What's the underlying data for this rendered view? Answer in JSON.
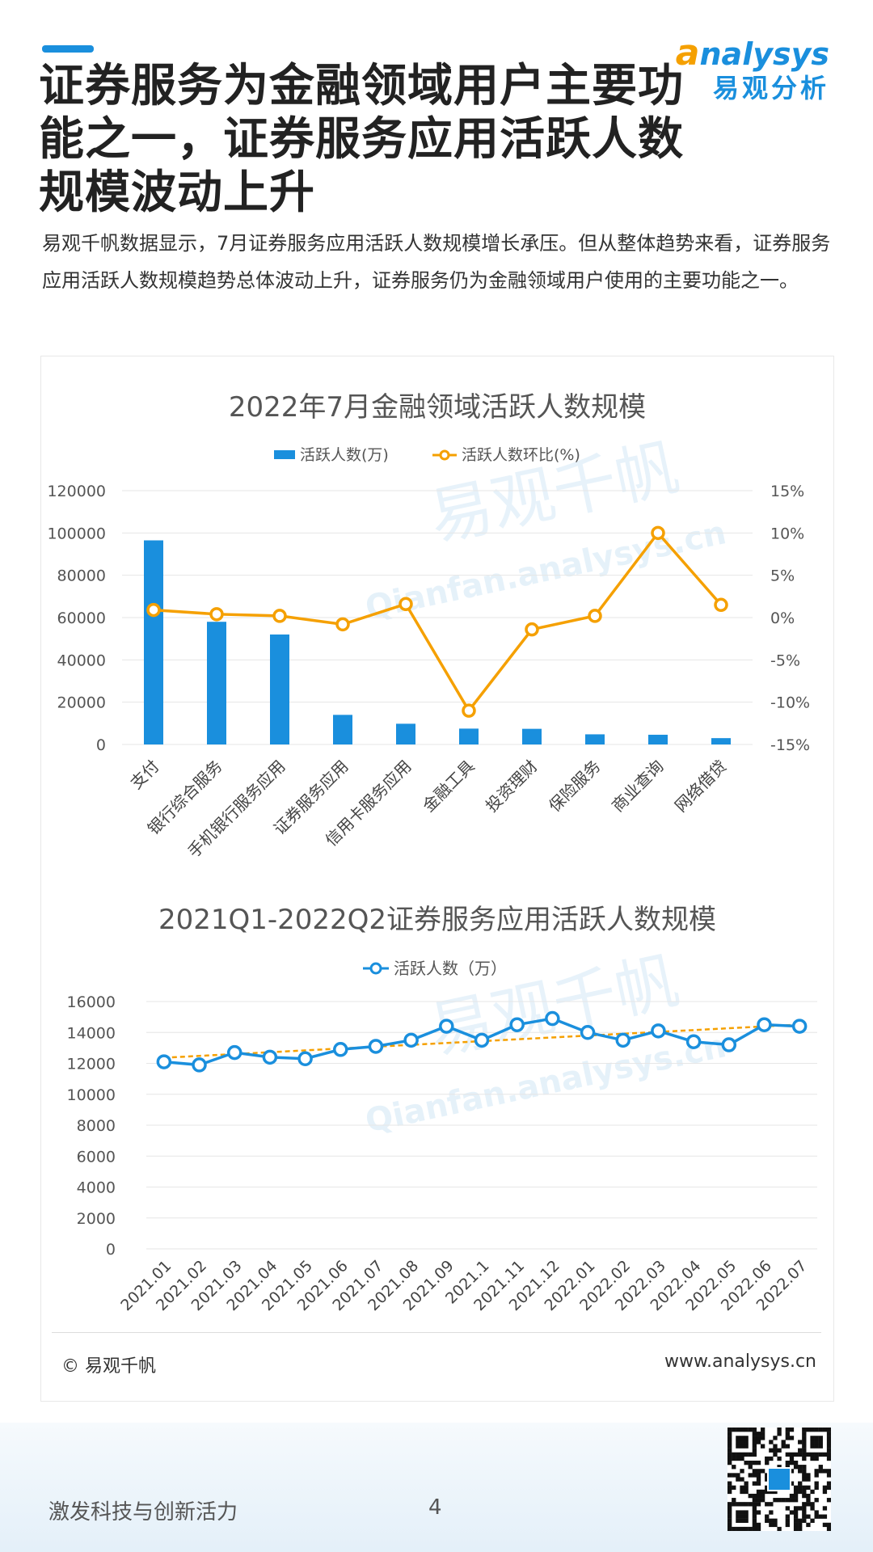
{
  "header": {
    "title": "证券服务为金融领域用户主要功\n能之一，证券服务应用活跃人数\n规模波动上升",
    "description": "易观千帆数据显示，7月证券服务应用活跃人数规模增长承压。但从整体趋势来看，证券服务应用活跃人数规模趋势总体波动上升，证券服务仍为金融领域用户使用的主要功能之一。"
  },
  "logo": {
    "en": "nalysys",
    "en_initial": "a",
    "cn": "易观分析"
  },
  "watermark": {
    "cn": "易观千帆",
    "url": "Qianfan.analysys.cn"
  },
  "footer": {
    "copyright": "© 易观千帆",
    "website": "www.analysys.cn",
    "slogan": "激发科技与创新活力",
    "page_number": "4"
  },
  "colors": {
    "accent": "#1a8fdd",
    "orange": "#f5a000",
    "grid": "#e6e6e6"
  },
  "chart_data": [
    {
      "type": "bar",
      "title": "2022年7月金融领域活跃人数规模",
      "categories": [
        "支付",
        "银行综合服务",
        "手机银行服务应用",
        "证券服务应用",
        "信用卡服务应用",
        "金融工具",
        "投资理财",
        "保险服务",
        "商业查询",
        "网络借贷"
      ],
      "series": [
        {
          "name": "活跃人数(万)",
          "type": "bar",
          "axis": "left",
          "values": [
            96500,
            58000,
            52000,
            14000,
            9800,
            7500,
            7400,
            4800,
            4600,
            3000
          ]
        },
        {
          "name": "活跃人数环比(%)",
          "type": "line",
          "axis": "right",
          "values": [
            0.9,
            0.4,
            0.2,
            -0.8,
            1.6,
            -11.0,
            -1.4,
            0.2,
            10.0,
            1.5
          ]
        }
      ],
      "ylim": [
        0,
        120000
      ],
      "yticks": [
        "0",
        "20000",
        "40000",
        "60000",
        "80000",
        "100000",
        "120000"
      ],
      "y2lim": [
        -15,
        15
      ],
      "y2ticks": [
        "-15%",
        "-10%",
        "-5%",
        "0%",
        "5%",
        "10%",
        "15%"
      ],
      "legend": "top",
      "grid": true
    },
    {
      "type": "line",
      "title": "2021Q1-2022Q2证券服务应用活跃人数规模",
      "categories": [
        "2021.01",
        "2021.02",
        "2021.03",
        "2021.04",
        "2021.05",
        "2021.06",
        "2021.07",
        "2021.08",
        "2021.09",
        "2021.1",
        "2021.11",
        "2021.12",
        "2022.01",
        "2022.02",
        "2022.03",
        "2022.04",
        "2022.05",
        "2022.06",
        "2022.07"
      ],
      "series": [
        {
          "name": "活跃人数（万）",
          "values": [
            12100,
            11900,
            12700,
            12400,
            12300,
            12900,
            13100,
            13500,
            14400,
            13500,
            14500,
            14900,
            14000,
            13500,
            14100,
            13400,
            13200,
            14500,
            14400
          ]
        }
      ],
      "trendline": true,
      "ylim": [
        0,
        16000
      ],
      "yticks": [
        "0",
        "2000",
        "4000",
        "6000",
        "8000",
        "10000",
        "12000",
        "14000",
        "16000"
      ],
      "legend": "top",
      "grid": true
    }
  ]
}
